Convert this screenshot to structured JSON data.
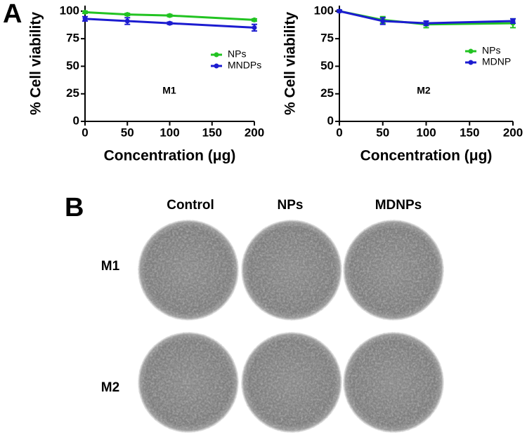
{
  "panel_labels": [
    "A",
    "B"
  ],
  "chart_data": [
    {
      "type": "line",
      "annotation": "M1",
      "xlabel": "Concentration (μg)",
      "ylabel": "% Cell viability",
      "x": [
        0,
        50,
        100,
        200
      ],
      "xlim": [
        0,
        200
      ],
      "xticks": [
        0,
        50,
        100,
        150,
        200
      ],
      "ylim": [
        0,
        105
      ],
      "yticks": [
        0,
        25,
        50,
        75,
        100
      ],
      "legend": "right",
      "series": [
        {
          "name": "NPs",
          "color": "#22c322",
          "values": [
            99,
            97,
            96,
            92
          ],
          "errors": [
            1,
            1,
            1,
            1
          ]
        },
        {
          "name": "MNDPs",
          "color": "#1c1cd0",
          "values": [
            93,
            91,
            89,
            85
          ],
          "errors": [
            2,
            3,
            1,
            3
          ]
        }
      ]
    },
    {
      "type": "line",
      "annotation": "M2",
      "xlabel": "Concentration (μg)",
      "ylabel": "% Cell viability",
      "x": [
        0,
        50,
        100,
        200
      ],
      "xlim": [
        0,
        200
      ],
      "xticks": [
        0,
        50,
        100,
        150,
        200
      ],
      "ylim": [
        0,
        105
      ],
      "yticks": [
        0,
        25,
        50,
        75,
        100
      ],
      "legend": "right",
      "series": [
        {
          "name": "NPs",
          "color": "#22c322",
          "values": [
            100,
            92,
            88,
            89
          ],
          "errors": [
            1,
            3,
            3,
            4
          ]
        },
        {
          "name": "MDNP",
          "color": "#1c1cd0",
          "values": [
            100,
            91,
            89,
            91
          ],
          "errors": [
            1,
            3,
            2,
            2
          ]
        }
      ]
    }
  ],
  "images": {
    "columns": [
      "Control",
      "NPs",
      "MDNPs"
    ],
    "rows": [
      "M1",
      "M2"
    ]
  }
}
